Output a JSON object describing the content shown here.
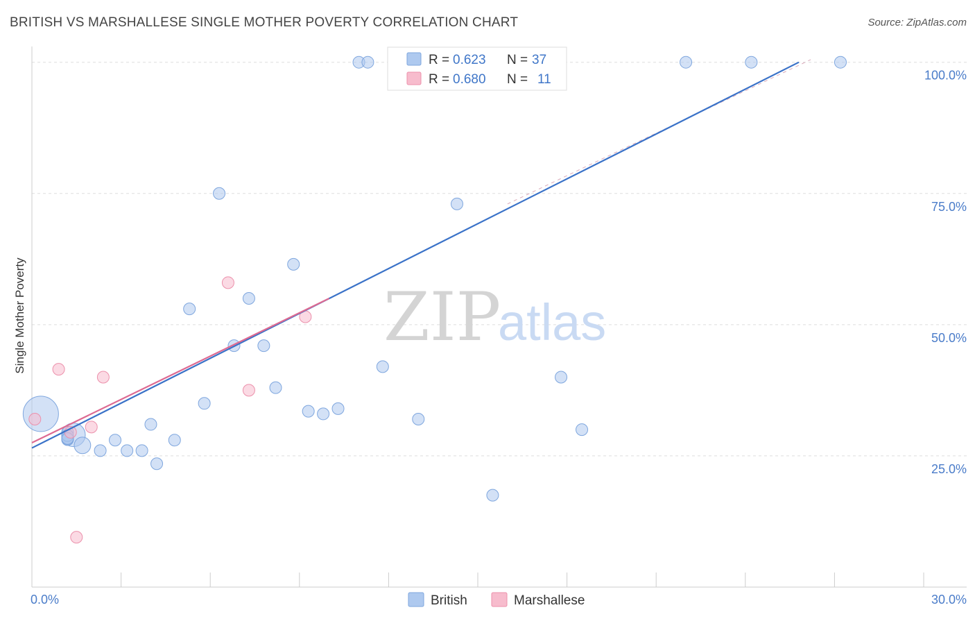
{
  "title": "BRITISH VS MARSHALLESE SINGLE MOTHER POVERTY CORRELATION CHART",
  "source": "Source: ZipAtlas.com",
  "watermark": {
    "zip": "ZIP",
    "atlas": "atlas"
  },
  "chart_data": {
    "type": "scatter",
    "xlabel": "",
    "ylabel": "Single Mother Poverty",
    "xlim": [
      0,
      30
    ],
    "ylim": [
      0,
      103
    ],
    "x_ticks": [
      0,
      3,
      6,
      9,
      12,
      15,
      18,
      21,
      24,
      27,
      30
    ],
    "x_tick_labels": [
      {
        "value": 0,
        "label": "0.0%"
      },
      {
        "value": 30,
        "label": "30.0%"
      }
    ],
    "y_tick_labels": [
      {
        "value": 25,
        "label": "25.0%"
      },
      {
        "value": 50,
        "label": "50.0%"
      },
      {
        "value": 75,
        "label": "75.0%"
      },
      {
        "value": 100,
        "label": "100.0%"
      }
    ],
    "y_gridlines": [
      25,
      50,
      75,
      100
    ],
    "colors": {
      "british_fill": "#aec9ef",
      "british_stroke": "#7ea6de",
      "british_line": "#3a72c8",
      "marshallese_fill": "#f7bccd",
      "marshallese_stroke": "#ec90ab",
      "marshallese_line": "#dd6a92",
      "grid": "#dddddd",
      "axis": "#cccccc"
    },
    "series": [
      {
        "name": "British",
        "R": "0.623",
        "N": "37",
        "points": [
          {
            "x": 0.3,
            "y": 33.0,
            "s": 3
          },
          {
            "x": 1.4,
            "y": 29.0,
            "s": 2
          },
          {
            "x": 1.2,
            "y": 29.5,
            "s": 1
          },
          {
            "x": 1.2,
            "y": 28.5,
            "s": 1
          },
          {
            "x": 1.2,
            "y": 28.2,
            "s": 1
          },
          {
            "x": 1.2,
            "y": 28.4,
            "s": 1
          },
          {
            "x": 1.2,
            "y": 28.8,
            "s": 1
          },
          {
            "x": 1.2,
            "y": 28.1,
            "s": 1
          },
          {
            "x": 1.2,
            "y": 28.9,
            "s": 1
          },
          {
            "x": 1.2,
            "y": 28.3,
            "s": 1
          },
          {
            "x": 1.7,
            "y": 27.0,
            "s": 1.4
          },
          {
            "x": 2.3,
            "y": 26.0,
            "s": 1
          },
          {
            "x": 2.8,
            "y": 28.0,
            "s": 1
          },
          {
            "x": 3.2,
            "y": 26.0,
            "s": 1
          },
          {
            "x": 3.7,
            "y": 26.0,
            "s": 1
          },
          {
            "x": 4.0,
            "y": 31.0,
            "s": 1
          },
          {
            "x": 4.2,
            "y": 23.5,
            "s": 1
          },
          {
            "x": 4.8,
            "y": 28.0,
            "s": 1
          },
          {
            "x": 5.3,
            "y": 53.0,
            "s": 1
          },
          {
            "x": 5.8,
            "y": 35.0,
            "s": 1
          },
          {
            "x": 6.3,
            "y": 75.0,
            "s": 1
          },
          {
            "x": 6.8,
            "y": 46.0,
            "s": 1
          },
          {
            "x": 7.3,
            "y": 55.0,
            "s": 1
          },
          {
            "x": 7.8,
            "y": 46.0,
            "s": 1
          },
          {
            "x": 8.2,
            "y": 38.0,
            "s": 1
          },
          {
            "x": 8.8,
            "y": 61.5,
            "s": 1
          },
          {
            "x": 9.3,
            "y": 33.5,
            "s": 1
          },
          {
            "x": 9.8,
            "y": 33.0,
            "s": 1
          },
          {
            "x": 10.3,
            "y": 34.0,
            "s": 1
          },
          {
            "x": 11.0,
            "y": 100.0,
            "s": 1
          },
          {
            "x": 11.3,
            "y": 100.0,
            "s": 1
          },
          {
            "x": 11.8,
            "y": 42.0,
            "s": 1
          },
          {
            "x": 13.0,
            "y": 32.0,
            "s": 1
          },
          {
            "x": 14.3,
            "y": 73.0,
            "s": 1
          },
          {
            "x": 15.5,
            "y": 17.5,
            "s": 1
          },
          {
            "x": 17.8,
            "y": 40.0,
            "s": 1
          },
          {
            "x": 18.5,
            "y": 30.0,
            "s": 1
          },
          {
            "x": 22.0,
            "y": 100.0,
            "s": 1
          },
          {
            "x": 24.2,
            "y": 100.0,
            "s": 1
          },
          {
            "x": 27.2,
            "y": 100.0,
            "s": 1
          }
        ],
        "trend": {
          "x1": 0,
          "y1": 26.5,
          "x2": 25.8,
          "y2": 100.0
        }
      },
      {
        "name": "Marshallese",
        "R": "0.680",
        "N": "11",
        "points": [
          {
            "x": 0.1,
            "y": 32.0,
            "s": 1
          },
          {
            "x": 0.9,
            "y": 41.5,
            "s": 1
          },
          {
            "x": 1.5,
            "y": 9.5,
            "s": 1
          },
          {
            "x": 2.0,
            "y": 30.5,
            "s": 1
          },
          {
            "x": 2.4,
            "y": 40.0,
            "s": 1
          },
          {
            "x": 6.6,
            "y": 58.0,
            "s": 1
          },
          {
            "x": 7.3,
            "y": 37.5,
            "s": 1
          },
          {
            "x": 9.2,
            "y": 51.5,
            "s": 1
          },
          {
            "x": 1.3,
            "y": 29.5,
            "s": 1
          }
        ],
        "trend": {
          "x1": 0,
          "y1": 27.5,
          "x2": 10.0,
          "y2": 55.0
        }
      }
    ],
    "legend": {
      "items": [
        "British",
        "Marshallese"
      ],
      "position": "bottom-center"
    },
    "stats_box": {
      "position": "top-center",
      "r_label": "R =",
      "n_label": "N ="
    }
  }
}
